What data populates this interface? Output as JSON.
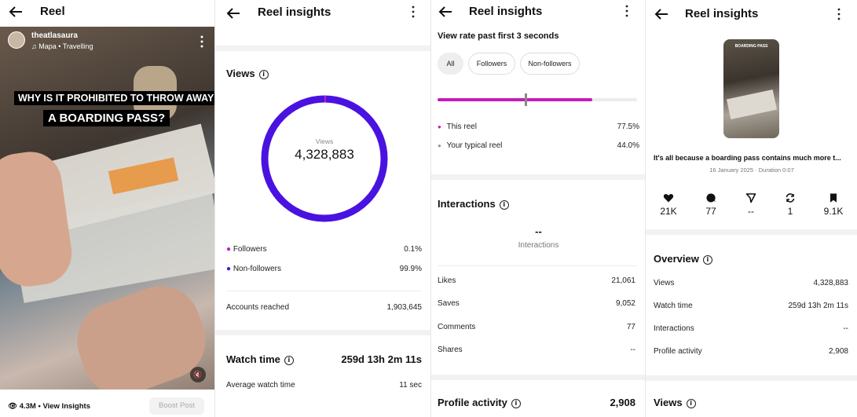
{
  "panel1": {
    "title": "Reel",
    "username": "theatlasaura",
    "audio": "Mapa • Travelling",
    "caption_line1": "WHY IS IT PROHIBITED TO THROW AWAY",
    "caption_line2": "A BOARDING PASS?",
    "views_count": "4.3M",
    "view_insights": "View Insights",
    "boost_label": "Boost Post"
  },
  "panel2": {
    "title": "Reel insights",
    "views_section": "Views",
    "ring_label": "Views",
    "ring_value": "4,328,883",
    "followers_label": "Followers",
    "followers_value": "0.1%",
    "followers_share": 0.001,
    "nonfollowers_label": "Non-followers",
    "nonfollowers_value": "99.9%",
    "accounts_reached_label": "Accounts reached",
    "accounts_reached_value": "1,903,645",
    "watch_time_label": "Watch time",
    "watch_time_value": "259d 13h 2m 11s",
    "avg_watch_label": "Average watch time",
    "avg_watch_value": "11 sec",
    "colors": {
      "accent": "#4a12e0",
      "followers": "#c020c8"
    }
  },
  "panel3": {
    "title": "Reel insights",
    "view_rate_title": "View rate past first 3 seconds",
    "filters": [
      "All",
      "Followers",
      "Non-followers"
    ],
    "this_reel_label": "This reel",
    "this_reel_value": "77.5%",
    "this_reel_rate": 0.775,
    "typical_label": "Your typical reel",
    "typical_value": "44.0%",
    "typical_rate": 0.44,
    "interactions_title": "Interactions",
    "interactions_total": "--",
    "interactions_sub": "Interactions",
    "likes_label": "Likes",
    "likes_value": "21,061",
    "saves_label": "Saves",
    "saves_value": "9,052",
    "comments_label": "Comments",
    "comments_value": "77",
    "shares_label": "Shares",
    "shares_value": "--",
    "profile_activity_label": "Profile activity",
    "profile_activity_value": "2,908"
  },
  "panel4": {
    "title": "Reel insights",
    "thumb_text": "BOARDING PASS",
    "caption": "It's all because a boarding pass contains much more t...",
    "meta": "16 January 2025 · Duration 0:07",
    "stats": [
      {
        "icon": "heart-icon",
        "value": "21K"
      },
      {
        "icon": "comment-icon",
        "value": "77"
      },
      {
        "icon": "send-icon",
        "value": "--"
      },
      {
        "icon": "repost-icon",
        "value": "1"
      },
      {
        "icon": "bookmark-icon",
        "value": "9.1K"
      }
    ],
    "overview_title": "Overview",
    "overview": [
      {
        "label": "Views",
        "value": "4,328,883"
      },
      {
        "label": "Watch time",
        "value": "259d 13h 2m 11s"
      },
      {
        "label": "Interactions",
        "value": "--"
      },
      {
        "label": "Profile activity",
        "value": "2,908"
      }
    ],
    "views_title": "Views"
  }
}
